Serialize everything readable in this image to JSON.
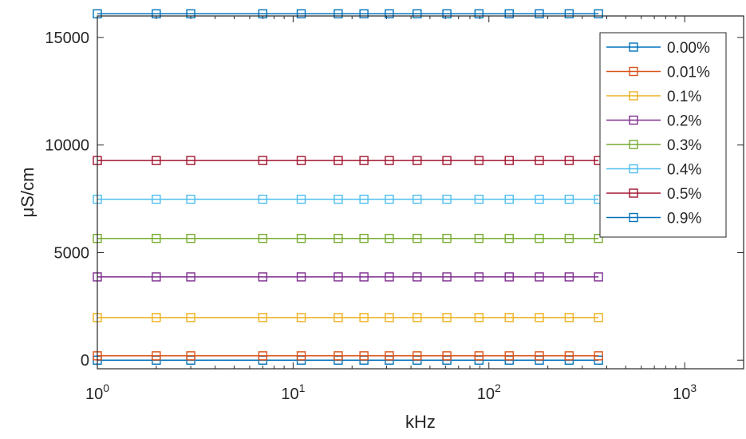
{
  "chart_data": {
    "type": "line",
    "xlabel": "kHz",
    "ylabel": "μS/cm",
    "xscale": "log",
    "xlim": [
      1,
      2000
    ],
    "ylim": [
      -400,
      16000
    ],
    "x_tick_labels": [
      {
        "base": "10",
        "exp": "0",
        "value": 1
      },
      {
        "base": "10",
        "exp": "1",
        "value": 10
      },
      {
        "base": "10",
        "exp": "2",
        "value": 100
      },
      {
        "base": "10",
        "exp": "3",
        "value": 1000
      }
    ],
    "y_ticks": [
      0,
      5000,
      10000,
      15000
    ],
    "y_tick_labels": [
      "0",
      "5000",
      "10000",
      "15000"
    ],
    "grid": false,
    "legend_position": "top-right",
    "marker": "square-open",
    "x": [
      1,
      2,
      3,
      7,
      11,
      17,
      23,
      31,
      43,
      61,
      89,
      127,
      181,
      257,
      363
    ],
    "series": [
      {
        "name": "0.00%",
        "color": "#0072BD",
        "values": [
          0,
          0,
          0,
          0,
          0,
          0,
          0,
          0,
          0,
          0,
          0,
          0,
          0,
          0,
          0
        ]
      },
      {
        "name": "0.01%",
        "color": "#D95319",
        "values": [
          200,
          200,
          200,
          200,
          200,
          200,
          200,
          200,
          200,
          200,
          200,
          200,
          200,
          200,
          200
        ]
      },
      {
        "name": "0.1%",
        "color": "#EDB120",
        "values": [
          1980,
          1980,
          1980,
          1980,
          1980,
          1980,
          1980,
          1980,
          1980,
          1980,
          1980,
          1980,
          1980,
          1980,
          1980
        ]
      },
      {
        "name": "0.2%",
        "color": "#7E2F8E",
        "values": [
          3870,
          3870,
          3870,
          3870,
          3870,
          3870,
          3870,
          3870,
          3870,
          3870,
          3870,
          3870,
          3870,
          3870,
          3870
        ]
      },
      {
        "name": "0.3%",
        "color": "#77AC30",
        "values": [
          5660,
          5660,
          5660,
          5660,
          5660,
          5660,
          5660,
          5660,
          5660,
          5660,
          5660,
          5660,
          5660,
          5660,
          5660
        ]
      },
      {
        "name": "0.4%",
        "color": "#4DBEEE",
        "values": [
          7480,
          7480,
          7480,
          7480,
          7480,
          7480,
          7480,
          7480,
          7480,
          7480,
          7480,
          7480,
          7480,
          7480,
          7480
        ]
      },
      {
        "name": "0.5%",
        "color": "#A2142F",
        "values": [
          9280,
          9280,
          9280,
          9280,
          9280,
          9280,
          9280,
          9280,
          9280,
          9280,
          9280,
          9280,
          9280,
          9280,
          9280
        ]
      },
      {
        "name": "0.9%",
        "color": "#0072BD",
        "values": [
          16100,
          16100,
          16100,
          16100,
          16100,
          16100,
          16100,
          16100,
          16100,
          16100,
          16100,
          16100,
          16100,
          16100,
          16100
        ]
      }
    ]
  }
}
